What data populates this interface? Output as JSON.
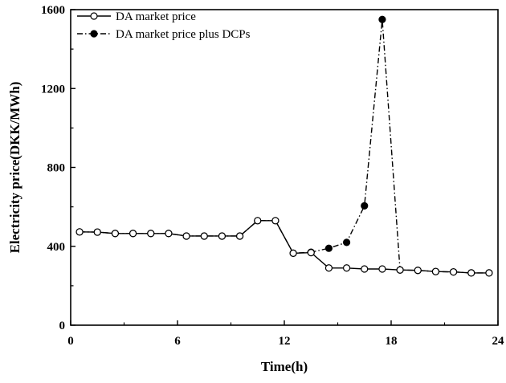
{
  "chart_data": {
    "type": "line",
    "xlabel": "Time(h)",
    "ylabel": "Electricity price(DKK/MWh)",
    "xlim": [
      0,
      24
    ],
    "ylim": [
      0,
      1600
    ],
    "xticks": [
      0,
      6,
      12,
      18,
      24
    ],
    "yticks": [
      0,
      400,
      800,
      1200,
      1600
    ],
    "grid": false,
    "legend_position": "top-left",
    "series": [
      {
        "name": "DA market price",
        "style": "solid",
        "marker": "open-circle",
        "color": "#000000",
        "x": [
          0.5,
          1.5,
          2.5,
          3.5,
          4.5,
          5.5,
          6.5,
          7.5,
          8.5,
          9.5,
          10.5,
          11.5,
          12.5,
          13.5,
          14.5,
          15.5,
          16.5,
          17.5,
          18.5,
          19.5,
          20.5,
          21.5,
          22.5,
          23.5
        ],
        "y": [
          473,
          472,
          465,
          465,
          465,
          465,
          452,
          452,
          452,
          452,
          530,
          530,
          365,
          368,
          290,
          290,
          285,
          285,
          280,
          278,
          272,
          270,
          265,
          265
        ]
      },
      {
        "name": "DA market price plus DCPs",
        "style": "dash-dot",
        "marker": "filled-circle",
        "color": "#000000",
        "x": [
          0.5,
          1.5,
          2.5,
          3.5,
          4.5,
          5.5,
          6.5,
          7.5,
          8.5,
          9.5,
          10.5,
          11.5,
          12.5,
          13.5,
          14.5,
          15.5,
          16.5,
          17.5,
          18.5,
          19.5,
          20.5,
          21.5,
          22.5,
          23.5
        ],
        "y": [
          473,
          472,
          465,
          465,
          465,
          465,
          452,
          452,
          452,
          452,
          530,
          530,
          365,
          370,
          390,
          420,
          605,
          1550,
          280,
          278,
          272,
          270,
          265,
          265
        ]
      }
    ]
  }
}
